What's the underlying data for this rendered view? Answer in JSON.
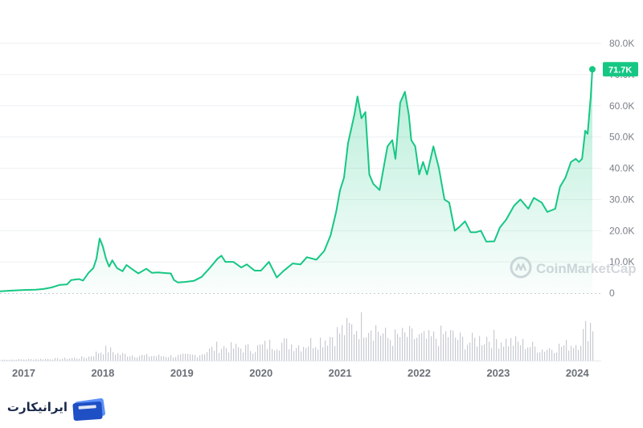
{
  "chart_data": {
    "type": "area",
    "title": "",
    "xlabel": "",
    "ylabel": "",
    "ylim": [
      0,
      80000
    ],
    "yticks": [
      0,
      10000,
      20000,
      30000,
      40000,
      50000,
      60000,
      70000,
      80000
    ],
    "ytick_labels": [
      "0",
      "10.0K",
      "20.0K",
      "30.0K",
      "40.0K",
      "50.0K",
      "60.0K",
      "70.0K",
      "80.0K"
    ],
    "xticks": [
      "2017",
      "2018",
      "2019",
      "2020",
      "2021",
      "2022",
      "2023",
      "2024"
    ],
    "grid": true,
    "current_price_label": "71.7K",
    "current_price": 71700,
    "line_color": "#16c784",
    "series": [
      {
        "values": [
          {
            "x": 2016.7,
            "y": 600
          },
          {
            "x": 2016.85,
            "y": 800
          },
          {
            "x": 2017.0,
            "y": 1000
          },
          {
            "x": 2017.15,
            "y": 1100
          },
          {
            "x": 2017.25,
            "y": 1300
          },
          {
            "x": 2017.35,
            "y": 1800
          },
          {
            "x": 2017.45,
            "y": 2600
          },
          {
            "x": 2017.55,
            "y": 2800
          },
          {
            "x": 2017.6,
            "y": 4200
          },
          {
            "x": 2017.7,
            "y": 4500
          },
          {
            "x": 2017.75,
            "y": 4000
          },
          {
            "x": 2017.82,
            "y": 6500
          },
          {
            "x": 2017.88,
            "y": 8000
          },
          {
            "x": 2017.92,
            "y": 11000
          },
          {
            "x": 2017.96,
            "y": 17500
          },
          {
            "x": 2018.0,
            "y": 15000
          },
          {
            "x": 2018.04,
            "y": 11000
          },
          {
            "x": 2018.08,
            "y": 8500
          },
          {
            "x": 2018.12,
            "y": 10500
          },
          {
            "x": 2018.18,
            "y": 8000
          },
          {
            "x": 2018.25,
            "y": 7000
          },
          {
            "x": 2018.3,
            "y": 9000
          },
          {
            "x": 2018.38,
            "y": 7500
          },
          {
            "x": 2018.45,
            "y": 6300
          },
          {
            "x": 2018.55,
            "y": 7800
          },
          {
            "x": 2018.62,
            "y": 6500
          },
          {
            "x": 2018.7,
            "y": 6600
          },
          {
            "x": 2018.8,
            "y": 6400
          },
          {
            "x": 2018.86,
            "y": 6300
          },
          {
            "x": 2018.9,
            "y": 4200
          },
          {
            "x": 2018.95,
            "y": 3400
          },
          {
            "x": 2019.05,
            "y": 3600
          },
          {
            "x": 2019.15,
            "y": 3900
          },
          {
            "x": 2019.25,
            "y": 5200
          },
          {
            "x": 2019.35,
            "y": 8000
          },
          {
            "x": 2019.45,
            "y": 11000
          },
          {
            "x": 2019.5,
            "y": 12000
          },
          {
            "x": 2019.55,
            "y": 10000
          },
          {
            "x": 2019.65,
            "y": 10000
          },
          {
            "x": 2019.75,
            "y": 8200
          },
          {
            "x": 2019.82,
            "y": 9200
          },
          {
            "x": 2019.92,
            "y": 7200
          },
          {
            "x": 2020.0,
            "y": 7200
          },
          {
            "x": 2020.1,
            "y": 10000
          },
          {
            "x": 2020.2,
            "y": 5000
          },
          {
            "x": 2020.28,
            "y": 7000
          },
          {
            "x": 2020.4,
            "y": 9500
          },
          {
            "x": 2020.5,
            "y": 9200
          },
          {
            "x": 2020.58,
            "y": 11500
          },
          {
            "x": 2020.7,
            "y": 10700
          },
          {
            "x": 2020.8,
            "y": 13500
          },
          {
            "x": 2020.88,
            "y": 18500
          },
          {
            "x": 2020.95,
            "y": 26000
          },
          {
            "x": 2021.0,
            "y": 33000
          },
          {
            "x": 2021.05,
            "y": 37000
          },
          {
            "x": 2021.1,
            "y": 48000
          },
          {
            "x": 2021.18,
            "y": 57000
          },
          {
            "x": 2021.22,
            "y": 63000
          },
          {
            "x": 2021.27,
            "y": 56000
          },
          {
            "x": 2021.32,
            "y": 58000
          },
          {
            "x": 2021.37,
            "y": 38000
          },
          {
            "x": 2021.42,
            "y": 35000
          },
          {
            "x": 2021.5,
            "y": 33000
          },
          {
            "x": 2021.55,
            "y": 40000
          },
          {
            "x": 2021.6,
            "y": 47000
          },
          {
            "x": 2021.66,
            "y": 49000
          },
          {
            "x": 2021.7,
            "y": 43000
          },
          {
            "x": 2021.76,
            "y": 61000
          },
          {
            "x": 2021.82,
            "y": 64500
          },
          {
            "x": 2021.87,
            "y": 57000
          },
          {
            "x": 2021.9,
            "y": 49000
          },
          {
            "x": 2021.95,
            "y": 47000
          },
          {
            "x": 2022.0,
            "y": 38000
          },
          {
            "x": 2022.05,
            "y": 42000
          },
          {
            "x": 2022.1,
            "y": 38000
          },
          {
            "x": 2022.18,
            "y": 47000
          },
          {
            "x": 2022.25,
            "y": 40000
          },
          {
            "x": 2022.32,
            "y": 30000
          },
          {
            "x": 2022.38,
            "y": 29000
          },
          {
            "x": 2022.45,
            "y": 20000
          },
          {
            "x": 2022.5,
            "y": 21000
          },
          {
            "x": 2022.58,
            "y": 23000
          },
          {
            "x": 2022.65,
            "y": 19500
          },
          {
            "x": 2022.72,
            "y": 19500
          },
          {
            "x": 2022.78,
            "y": 20000
          },
          {
            "x": 2022.85,
            "y": 16500
          },
          {
            "x": 2022.95,
            "y": 16600
          },
          {
            "x": 2023.02,
            "y": 21000
          },
          {
            "x": 2023.1,
            "y": 23500
          },
          {
            "x": 2023.2,
            "y": 28000
          },
          {
            "x": 2023.28,
            "y": 30000
          },
          {
            "x": 2023.38,
            "y": 27000
          },
          {
            "x": 2023.45,
            "y": 30500
          },
          {
            "x": 2023.55,
            "y": 29000
          },
          {
            "x": 2023.62,
            "y": 26000
          },
          {
            "x": 2023.72,
            "y": 27000
          },
          {
            "x": 2023.78,
            "y": 34000
          },
          {
            "x": 2023.85,
            "y": 37000
          },
          {
            "x": 2023.92,
            "y": 42000
          },
          {
            "x": 2023.98,
            "y": 43000
          },
          {
            "x": 2024.02,
            "y": 42000
          },
          {
            "x": 2024.06,
            "y": 43000
          },
          {
            "x": 2024.1,
            "y": 52000
          },
          {
            "x": 2024.13,
            "y": 51000
          },
          {
            "x": 2024.17,
            "y": 63000
          },
          {
            "x": 2024.19,
            "y": 71700
          }
        ]
      }
    ],
    "volume_series": {
      "name": "",
      "note_scale_max": 1,
      "values": [
        {
          "x": 2016.7,
          "y": 0.02
        },
        {
          "x": 2017.0,
          "y": 0.03
        },
        {
          "x": 2017.5,
          "y": 0.05
        },
        {
          "x": 2017.8,
          "y": 0.08
        },
        {
          "x": 2017.95,
          "y": 0.22
        },
        {
          "x": 2018.05,
          "y": 0.28
        },
        {
          "x": 2018.2,
          "y": 0.16
        },
        {
          "x": 2018.5,
          "y": 0.12
        },
        {
          "x": 2018.9,
          "y": 0.11
        },
        {
          "x": 2019.2,
          "y": 0.14
        },
        {
          "x": 2019.45,
          "y": 0.35
        },
        {
          "x": 2019.6,
          "y": 0.32
        },
        {
          "x": 2019.9,
          "y": 0.3
        },
        {
          "x": 2020.2,
          "y": 0.45
        },
        {
          "x": 2020.5,
          "y": 0.38
        },
        {
          "x": 2020.8,
          "y": 0.55
        },
        {
          "x": 2021.0,
          "y": 0.72
        },
        {
          "x": 2021.2,
          "y": 0.85
        },
        {
          "x": 2021.35,
          "y": 0.98
        },
        {
          "x": 2021.6,
          "y": 0.55
        },
        {
          "x": 2021.85,
          "y": 0.62
        },
        {
          "x": 2022.1,
          "y": 0.52
        },
        {
          "x": 2022.35,
          "y": 0.66
        },
        {
          "x": 2022.6,
          "y": 0.45
        },
        {
          "x": 2022.85,
          "y": 0.58
        },
        {
          "x": 2023.1,
          "y": 0.48
        },
        {
          "x": 2023.3,
          "y": 0.42
        },
        {
          "x": 2023.55,
          "y": 0.28
        },
        {
          "x": 2023.8,
          "y": 0.36
        },
        {
          "x": 2024.0,
          "y": 0.44
        },
        {
          "x": 2024.15,
          "y": 0.92
        }
      ]
    },
    "watermark": "CoinMarketCap"
  },
  "logo": {
    "text": "ایرانیکارت"
  }
}
